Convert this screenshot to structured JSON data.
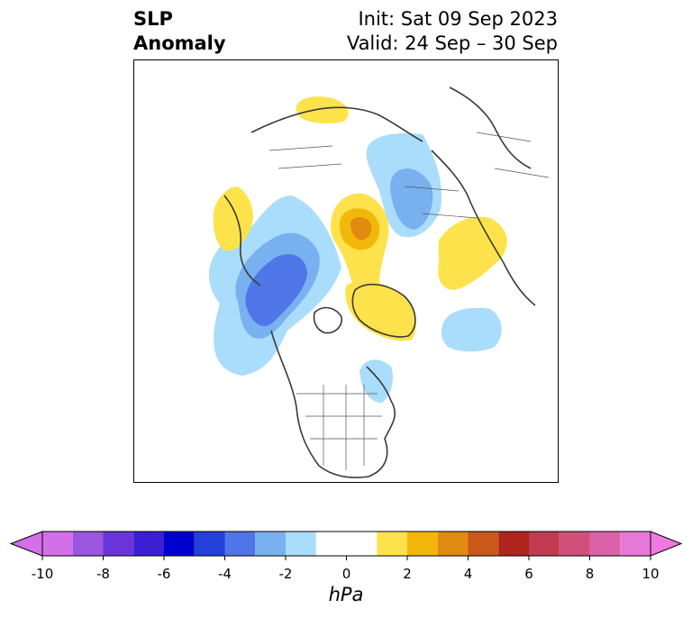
{
  "title": {
    "left_line1": "SLP",
    "left_line2": "Anomaly",
    "init": "Init: Sat 09 Sep 2023",
    "valid": "Valid: 24 Sep – 30 Sep"
  },
  "colorbar": {
    "unit": "hPa",
    "range": [
      -10,
      10
    ],
    "bins": [
      {
        "from": -10,
        "to": -9,
        "color": "#d36fe8"
      },
      {
        "from": -9,
        "to": -8,
        "color": "#9b55e0"
      },
      {
        "from": -8,
        "to": -7,
        "color": "#6a36db"
      },
      {
        "from": -7,
        "to": -6,
        "color": "#3b1fd3"
      },
      {
        "from": -6,
        "to": -5,
        "color": "#0000cf"
      },
      {
        "from": -5,
        "to": -4,
        "color": "#2341d8"
      },
      {
        "from": -4,
        "to": -3,
        "color": "#4f76e6"
      },
      {
        "from": -3,
        "to": -2,
        "color": "#79b0f0"
      },
      {
        "from": -2,
        "to": -1,
        "color": "#aadcfb"
      },
      {
        "from": -1,
        "to": 1,
        "color": "#ffffff"
      },
      {
        "from": 1,
        "to": 2,
        "color": "#fee24c"
      },
      {
        "from": 2,
        "to": 3,
        "color": "#f3b70b"
      },
      {
        "from": 3,
        "to": 4,
        "color": "#e08a10"
      },
      {
        "from": 4,
        "to": 5,
        "color": "#c9581a"
      },
      {
        "from": 5,
        "to": 6,
        "color": "#b0241e"
      },
      {
        "from": 6,
        "to": 7,
        "color": "#c23a50"
      },
      {
        "from": 7,
        "to": 8,
        "color": "#d0507a"
      },
      {
        "from": 8,
        "to": 9,
        "color": "#db62a8"
      },
      {
        "from": 9,
        "to": 10,
        "color": "#e878d8"
      }
    ],
    "over_color": "#f078e0",
    "under_color": "#d36fe8",
    "tick_labels": [
      "-10",
      "-8",
      "-6",
      "-4",
      "-2",
      "0",
      "2",
      "4",
      "6",
      "8",
      "10"
    ]
  }
}
